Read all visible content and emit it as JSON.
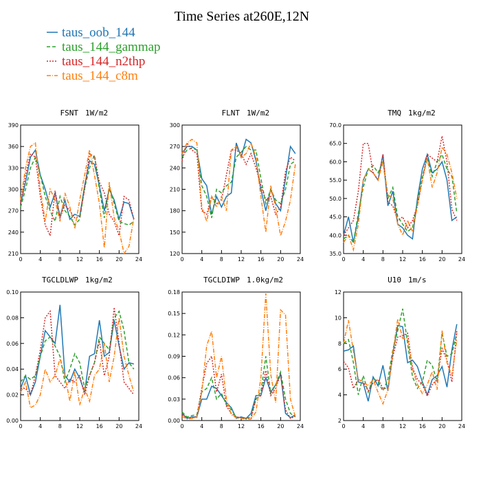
{
  "title": "Time Series at260E,12N",
  "legend": [
    {
      "name": "taus_oob_144",
      "color": "#1f77b4",
      "dash": "none"
    },
    {
      "name": "taus_144_gammap",
      "color": "#2ca02c",
      "dash": "5,3"
    },
    {
      "name": "taus_144_n2thp",
      "color": "#d62728",
      "dash": "2,2"
    },
    {
      "name": "taus_144_c8m",
      "color": "#ff7f0e",
      "dash": "6,2,1,2"
    }
  ],
  "chart_data": [
    {
      "type": "line",
      "title": "FSNT",
      "units": "1W/m2",
      "x": [
        0,
        1,
        2,
        3,
        4,
        5,
        6,
        7,
        8,
        9,
        10,
        11,
        12,
        13,
        14,
        15,
        16,
        17,
        18,
        19,
        20,
        21,
        22,
        23
      ],
      "xlim": [
        0,
        24
      ],
      "xticks": [
        0,
        4,
        8,
        12,
        16,
        20,
        24
      ],
      "ylim": [
        210,
        390
      ],
      "yticks": [
        210,
        240,
        270,
        300,
        330,
        360,
        390
      ],
      "series": [
        {
          "values": [
            280,
            310,
            345,
            355,
            320,
            300,
            275,
            295,
            262,
            285,
            258,
            265,
            262,
            305,
            340,
            335,
            305,
            270,
            300,
            285,
            258,
            282,
            280,
            258
          ]
        },
        {
          "values": [
            275,
            300,
            330,
            345,
            320,
            290,
            270,
            255,
            290,
            270,
            262,
            250,
            258,
            302,
            330,
            348,
            300,
            260,
            305,
            280,
            255,
            252,
            250,
            255
          ]
        },
        {
          "values": [
            280,
            320,
            350,
            345,
            290,
            250,
            235,
            298,
            260,
            278,
            270,
            260,
            262,
            300,
            350,
            345,
            310,
            295,
            265,
            255,
            235,
            290,
            285,
            258
          ]
        },
        {
          "values": [
            285,
            330,
            360,
            365,
            300,
            255,
            300,
            285,
            255,
            295,
            275,
            245,
            285,
            320,
            355,
            320,
            280,
            218,
            310,
            260,
            242,
            210,
            220,
            260
          ]
        }
      ]
    },
    {
      "type": "line",
      "title": "FLNT",
      "units": "1W/m2",
      "x": [
        0,
        1,
        2,
        3,
        4,
        5,
        6,
        7,
        8,
        9,
        10,
        11,
        12,
        13,
        14,
        15,
        16,
        17,
        18,
        19,
        20,
        21,
        22,
        23
      ],
      "xlim": [
        0,
        24
      ],
      "xticks": [
        0,
        4,
        8,
        12,
        16,
        20,
        24
      ],
      "ylim": [
        120,
        300
      ],
      "yticks": [
        120,
        150,
        180,
        210,
        240,
        270,
        300
      ],
      "series": [
        {
          "values": [
            260,
            270,
            270,
            265,
            225,
            215,
            175,
            200,
            185,
            200,
            205,
            275,
            255,
            280,
            275,
            250,
            210,
            180,
            210,
            190,
            180,
            225,
            270,
            260
          ]
        },
        {
          "values": [
            255,
            265,
            268,
            265,
            215,
            200,
            170,
            210,
            205,
            215,
            220,
            255,
            262,
            270,
            265,
            265,
            225,
            190,
            210,
            195,
            190,
            210,
            245,
            250
          ]
        },
        {
          "values": [
            250,
            275,
            265,
            260,
            180,
            175,
            200,
            190,
            195,
            230,
            265,
            265,
            260,
            245,
            260,
            240,
            215,
            195,
            200,
            175,
            185,
            235,
            255,
            250
          ]
        },
        {
          "values": [
            260,
            275,
            280,
            275,
            185,
            165,
            200,
            185,
            200,
            180,
            265,
            270,
            255,
            260,
            275,
            255,
            200,
            150,
            215,
            185,
            145,
            165,
            195,
            245
          ]
        }
      ]
    },
    {
      "type": "line",
      "title": "TMQ",
      "units": "1kg/m2",
      "x": [
        0,
        1,
        2,
        3,
        4,
        5,
        6,
        7,
        8,
        9,
        10,
        11,
        12,
        13,
        14,
        15,
        16,
        17,
        18,
        19,
        20,
        21,
        22,
        23
      ],
      "xlim": [
        0,
        24
      ],
      "xticks": [
        0,
        4,
        8,
        12,
        16,
        20,
        24
      ],
      "ylim": [
        35,
        70
      ],
      "yticks": [
        {
          "value": 35,
          "label": "35.0"
        },
        {
          "value": 40,
          "label": "40.0"
        },
        {
          "value": 45,
          "label": "45.0"
        },
        {
          "value": 50,
          "label": "50.0"
        },
        {
          "value": 55,
          "label": "55.0"
        },
        {
          "value": 60,
          "label": "60.0"
        },
        {
          "value": 65,
          "label": "65.0"
        },
        {
          "value": 70,
          "label": "70.0"
        }
      ],
      "series": [
        {
          "values": [
            40,
            45,
            38,
            45,
            55,
            58,
            57,
            55,
            62,
            48,
            52,
            43,
            42,
            40,
            39,
            50,
            58,
            62,
            57,
            58,
            60,
            55,
            44,
            45
          ]
        },
        {
          "values": [
            39,
            40,
            38,
            46,
            53,
            58,
            59,
            57,
            60,
            50,
            53,
            45,
            43,
            41,
            42,
            49,
            56,
            61,
            56,
            60,
            62,
            58,
            56,
            46
          ]
        },
        {
          "values": [
            40,
            42,
            44,
            52,
            65,
            65,
            57,
            55,
            62,
            49,
            48,
            44,
            45,
            42,
            44,
            48,
            55,
            62,
            61,
            60,
            67,
            60,
            47,
            44
          ]
        },
        {
          "values": [
            38,
            40,
            36,
            43,
            55,
            58,
            57,
            55,
            60,
            51,
            50,
            43,
            40,
            44,
            41,
            48,
            55,
            61,
            53,
            57,
            64,
            62,
            57,
            50
          ]
        }
      ]
    },
    {
      "type": "line",
      "title": "TGCLDLWP",
      "units": "1kg/m2",
      "x": [
        0,
        1,
        2,
        3,
        4,
        5,
        6,
        7,
        8,
        9,
        10,
        11,
        12,
        13,
        14,
        15,
        16,
        17,
        18,
        19,
        20,
        21,
        22,
        23
      ],
      "xlim": [
        0,
        24
      ],
      "xticks": [
        0,
        4,
        8,
        12,
        16,
        20,
        24
      ],
      "ylim": [
        0,
        0.1
      ],
      "yticks": [
        {
          "value": 0,
          "label": "0.00"
        },
        {
          "value": 0.02,
          "label": "0.02"
        },
        {
          "value": 0.04,
          "label": "0.04"
        },
        {
          "value": 0.06,
          "label": "0.06"
        },
        {
          "value": 0.08,
          "label": "0.08"
        },
        {
          "value": 0.1,
          "label": "0.10"
        }
      ],
      "series": [
        {
          "values": [
            0.025,
            0.035,
            0.02,
            0.03,
            0.05,
            0.07,
            0.065,
            0.06,
            0.09,
            0.035,
            0.03,
            0.04,
            0.033,
            0.022,
            0.05,
            0.052,
            0.078,
            0.05,
            0.053,
            0.078,
            0.058,
            0.04,
            0.045,
            0.044
          ]
        },
        {
          "values": [
            0.03,
            0.035,
            0.032,
            0.035,
            0.05,
            0.062,
            0.065,
            0.058,
            0.05,
            0.03,
            0.04,
            0.052,
            0.045,
            0.025,
            0.035,
            0.045,
            0.065,
            0.06,
            0.055,
            0.08,
            0.085,
            0.07,
            0.045,
            0.04
          ]
        },
        {
          "values": [
            0.025,
            0.025,
            0.02,
            0.035,
            0.055,
            0.08,
            0.085,
            0.035,
            0.03,
            0.025,
            0.032,
            0.03,
            0.035,
            0.02,
            0.035,
            0.045,
            0.062,
            0.035,
            0.05,
            0.088,
            0.06,
            0.03,
            0.025,
            0.02
          ]
        },
        {
          "values": [
            0.022,
            0.03,
            0.01,
            0.012,
            0.02,
            0.04,
            0.03,
            0.035,
            0.048,
            0.035,
            0.015,
            0.038,
            0.012,
            0.025,
            0.015,
            0.035,
            0.04,
            0.06,
            0.03,
            0.05,
            0.08,
            0.05,
            0.035,
            0.022
          ]
        }
      ]
    },
    {
      "type": "line",
      "title": "TGCLDIWP",
      "units": "1.0kg/m2",
      "x": [
        0,
        1,
        2,
        3,
        4,
        5,
        6,
        7,
        8,
        9,
        10,
        11,
        12,
        13,
        14,
        15,
        16,
        17,
        18,
        19,
        20,
        21,
        22,
        23
      ],
      "xlim": [
        0,
        24
      ],
      "xticks": [
        0,
        4,
        8,
        12,
        16,
        20,
        24
      ],
      "ylim": [
        0,
        0.18
      ],
      "yticks": [
        {
          "value": 0,
          "label": "0.00"
        },
        {
          "value": 0.03,
          "label": "0.03"
        },
        {
          "value": 0.06,
          "label": "0.06"
        },
        {
          "value": 0.09,
          "label": "0.09"
        },
        {
          "value": 0.12,
          "label": "0.12"
        },
        {
          "value": 0.15,
          "label": "0.15"
        },
        {
          "value": 0.18,
          "label": "0.18"
        }
      ],
      "series": [
        {
          "values": [
            0.01,
            0.003,
            0.005,
            0.005,
            0.03,
            0.03,
            0.048,
            0.045,
            0.035,
            0.025,
            0.018,
            0.003,
            0.005,
            0.003,
            0.01,
            0.035,
            0.035,
            0.06,
            0.04,
            0.05,
            0.065,
            0.01,
            0.004,
            0.008
          ]
        },
        {
          "values": [
            0.012,
            0.005,
            0.007,
            0.008,
            0.04,
            0.045,
            0.06,
            0.03,
            0.038,
            0.022,
            0.015,
            0.005,
            0.003,
            0.003,
            0.005,
            0.03,
            0.04,
            0.09,
            0.038,
            0.05,
            0.068,
            0.03,
            0.01,
            0.005
          ]
        },
        {
          "values": [
            0.008,
            0.004,
            0.003,
            0.006,
            0.045,
            0.08,
            0.09,
            0.04,
            0.065,
            0.02,
            0.01,
            0.005,
            0.004,
            0.002,
            0.003,
            0.03,
            0.035,
            0.07,
            0.035,
            0.045,
            0.065,
            0.015,
            0.003,
            0.006
          ]
        },
        {
          "values": [
            0.006,
            0.002,
            0.003,
            0.004,
            0.04,
            0.105,
            0.125,
            0.06,
            0.09,
            0.03,
            0.008,
            0.004,
            0.003,
            0.002,
            0.002,
            0.012,
            0.06,
            0.178,
            0.065,
            0.025,
            0.155,
            0.148,
            0.03,
            0.005
          ]
        }
      ]
    },
    {
      "type": "line",
      "title": "U10",
      "units": "1m/s",
      "x": [
        0,
        1,
        2,
        3,
        4,
        5,
        6,
        7,
        8,
        9,
        10,
        11,
        12,
        13,
        14,
        15,
        16,
        17,
        18,
        19,
        20,
        21,
        22,
        23
      ],
      "xlim": [
        0,
        24
      ],
      "xticks": [
        0,
        4,
        8,
        12,
        16,
        20,
        24
      ],
      "ylim": [
        2,
        12
      ],
      "yticks": [
        2,
        4,
        6,
        8,
        10,
        12
      ],
      "series": [
        {
          "values": [
            7.4,
            7.5,
            7.8,
            5.0,
            4.9,
            3.5,
            5.4,
            4.7,
            6.3,
            4.3,
            7.2,
            9.4,
            9.3,
            6.5,
            6.7,
            6.2,
            5.0,
            4.0,
            5.2,
            5.5,
            6.2,
            4.6,
            7.5,
            9.5
          ]
        },
        {
          "values": [
            8.0,
            8.3,
            6.5,
            4.0,
            5.5,
            4.2,
            5.3,
            5.0,
            4.3,
            5.2,
            7.5,
            9.0,
            10.7,
            8.0,
            5.4,
            4.5,
            5.0,
            6.7,
            6.3,
            5.0,
            8.8,
            7.0,
            7.2,
            8.8
          ]
        },
        {
          "values": [
            6.6,
            6.1,
            4.5,
            5.2,
            5.0,
            4.3,
            4.9,
            5.2,
            4.5,
            4.5,
            7.0,
            8.5,
            8.6,
            8.8,
            6.1,
            5.2,
            4.8,
            3.9,
            4.8,
            5.2,
            7.6,
            6.7,
            5.0,
            9.0
          ]
        },
        {
          "values": [
            8.0,
            9.8,
            7.4,
            5.2,
            5.0,
            4.7,
            5.2,
            4.2,
            3.3,
            4.4,
            7.3,
            9.9,
            8.4,
            8.4,
            6.0,
            4.8,
            4.1,
            4.8,
            5.8,
            4.4,
            9.0,
            6.5,
            5.5,
            8.3
          ]
        }
      ]
    }
  ]
}
